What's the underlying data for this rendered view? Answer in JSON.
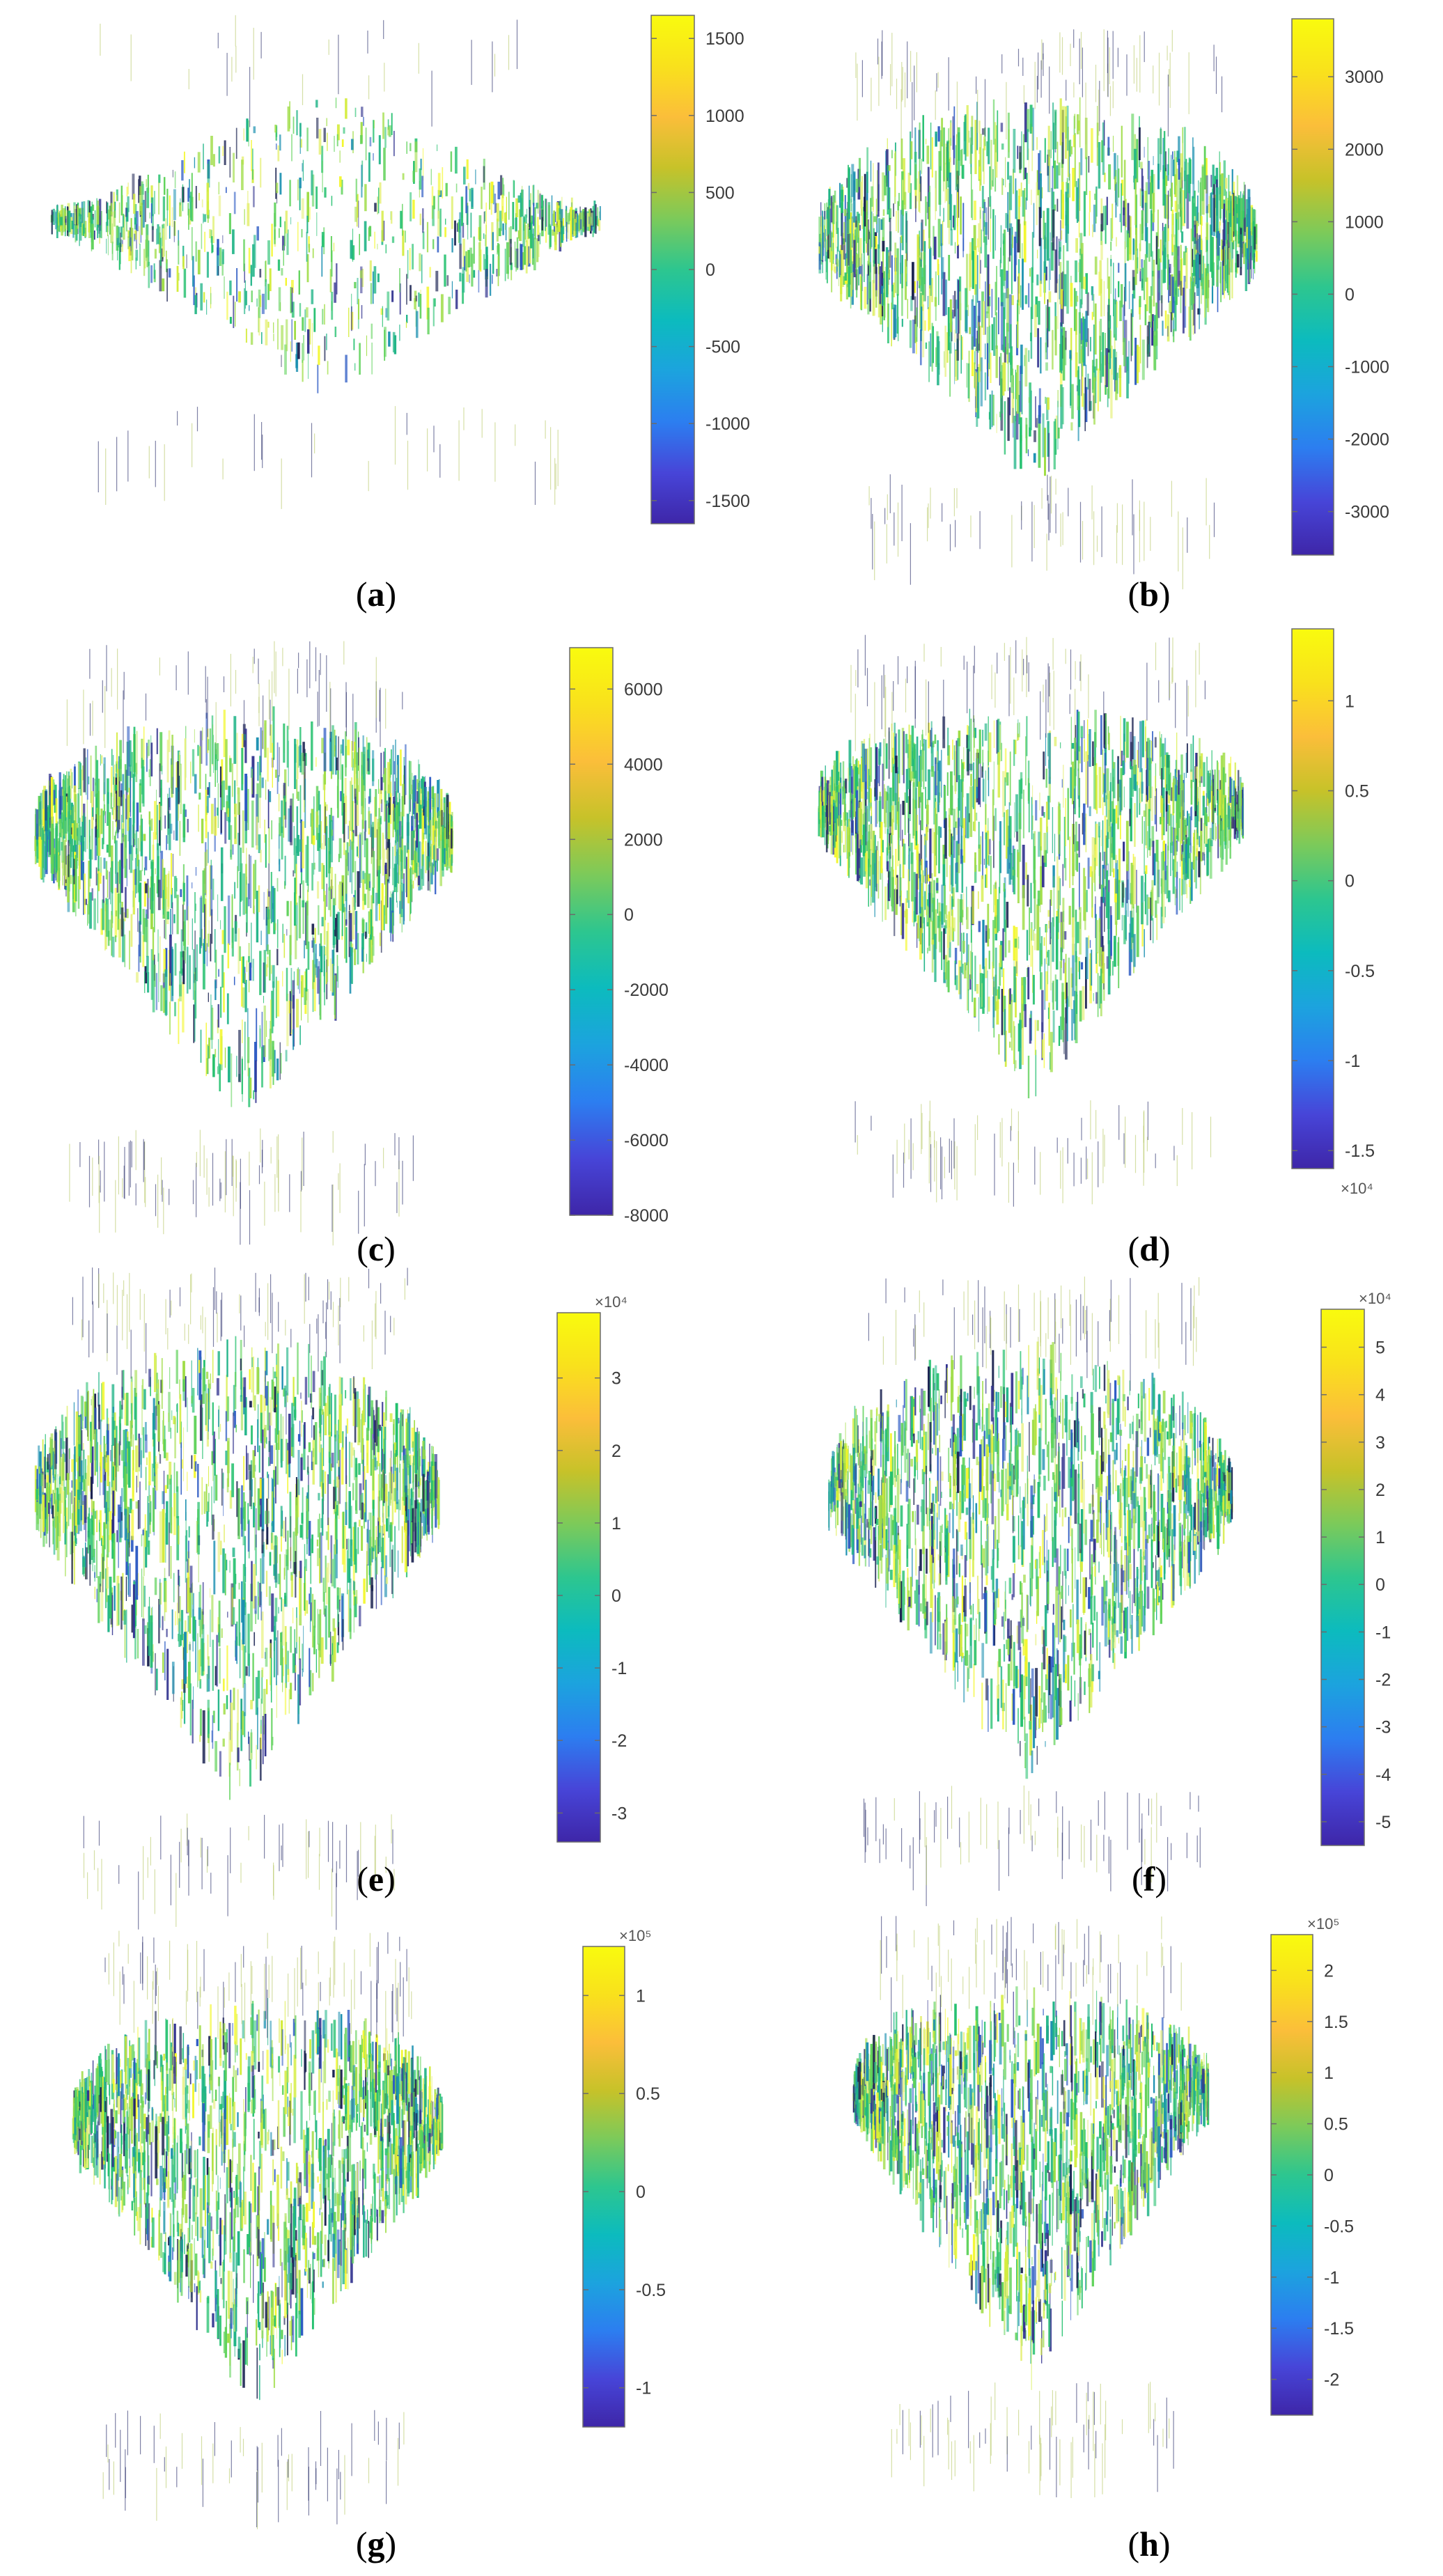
{
  "figure": {
    "colormap": [
      "#3e26a8",
      "#4745d8",
      "#2c7ef0",
      "#1ca3de",
      "#0cbbbe",
      "#2dc68f",
      "#7cca5a",
      "#c7c229",
      "#fbbe3a",
      "#f9e11c",
      "#f9fb0e"
    ],
    "surface_palette": [
      "#f3f72a",
      "#d4ec3c",
      "#9fdd46",
      "#5fd25a",
      "#23c06e",
      "#1fb487",
      "#1a8fb0",
      "#2b59c3",
      "#32338f",
      "#1c2452",
      "#e6f07a"
    ]
  },
  "chart_data": [
    {
      "type": "surface-3d",
      "label_open": "(",
      "label_letter": "a",
      "label_close": ")",
      "colorbar": {
        "ticks": [
          "1500",
          "1000",
          "500",
          "0",
          "-500",
          "-1000",
          "-1500"
        ],
        "values": [
          1500,
          1000,
          500,
          0,
          -500,
          -1000,
          -1500
        ],
        "range": [
          -1650,
          1650
        ],
        "exponent": ""
      }
    },
    {
      "type": "surface-3d",
      "label_open": "(",
      "label_letter": "b",
      "label_close": ")",
      "colorbar": {
        "ticks": [
          "3000",
          "2000",
          "1000",
          "0",
          "-1000",
          "-2000",
          "-3000"
        ],
        "values": [
          3000,
          2000,
          1000,
          0,
          -1000,
          -2000,
          -3000
        ],
        "range": [
          -3600,
          3800
        ],
        "exponent": ""
      }
    },
    {
      "type": "surface-3d",
      "label_open": "(",
      "label_letter": "c",
      "label_close": ")",
      "colorbar": {
        "ticks": [
          "6000",
          "4000",
          "2000",
          "0",
          "-2000",
          "-4000",
          "-6000",
          "-8000"
        ],
        "values": [
          6000,
          4000,
          2000,
          0,
          -2000,
          -4000,
          -6000,
          -8000
        ],
        "range": [
          -8000,
          7100
        ],
        "exponent": ""
      }
    },
    {
      "type": "surface-3d",
      "label_open": "(",
      "label_letter": "d",
      "label_close": ")",
      "colorbar": {
        "ticks": [
          "1",
          "0.5",
          "0",
          "-0.5",
          "-1",
          "-1.5"
        ],
        "values": [
          1,
          0.5,
          0,
          -0.5,
          -1,
          -1.5
        ],
        "range": [
          -1.6,
          1.4
        ],
        "exponent": "×10⁴",
        "exponent_position": "bottom"
      }
    },
    {
      "type": "surface-3d",
      "label_open": "(",
      "label_letter": "e",
      "label_close": ")",
      "colorbar": {
        "ticks": [
          "3",
          "2",
          "1",
          "0",
          "-1",
          "-2",
          "-3"
        ],
        "values": [
          3,
          2,
          1,
          0,
          -1,
          -2,
          -3
        ],
        "range": [
          -3.4,
          3.9
        ],
        "exponent": "×10⁴",
        "exponent_position": "top"
      }
    },
    {
      "type": "surface-3d",
      "label_open": "(",
      "label_letter": "f",
      "label_close": ")",
      "colorbar": {
        "ticks": [
          "5",
          "4",
          "3",
          "2",
          "1",
          "0",
          "-1",
          "-2",
          "-3",
          "-4",
          "-5"
        ],
        "values": [
          5,
          4,
          3,
          2,
          1,
          0,
          -1,
          -2,
          -3,
          -4,
          -5
        ],
        "range": [
          -5.5,
          5.8
        ],
        "exponent": "×10⁴",
        "exponent_position": "top"
      }
    },
    {
      "type": "surface-3d",
      "label_open": "(",
      "label_letter": "g",
      "label_close": ")",
      "colorbar": {
        "ticks": [
          "1",
          "0.5",
          "0",
          "-0.5",
          "-1"
        ],
        "values": [
          1,
          0.5,
          0,
          -0.5,
          -1
        ],
        "range": [
          -1.2,
          1.25
        ],
        "exponent": "×10⁵",
        "exponent_position": "top"
      }
    },
    {
      "type": "surface-3d",
      "label_open": "(",
      "label_letter": "h",
      "label_close": ")",
      "colorbar": {
        "ticks": [
          "2",
          "1.5",
          "1",
          "0.5",
          "0",
          "-0.5",
          "-1",
          "-1.5",
          "-2"
        ],
        "values": [
          2,
          1.5,
          1,
          0.5,
          0,
          -0.5,
          -1,
          -1.5,
          -2
        ],
        "range": [
          -2.35,
          2.35
        ],
        "exponent": "×10⁵",
        "exponent_position": "top"
      }
    }
  ]
}
